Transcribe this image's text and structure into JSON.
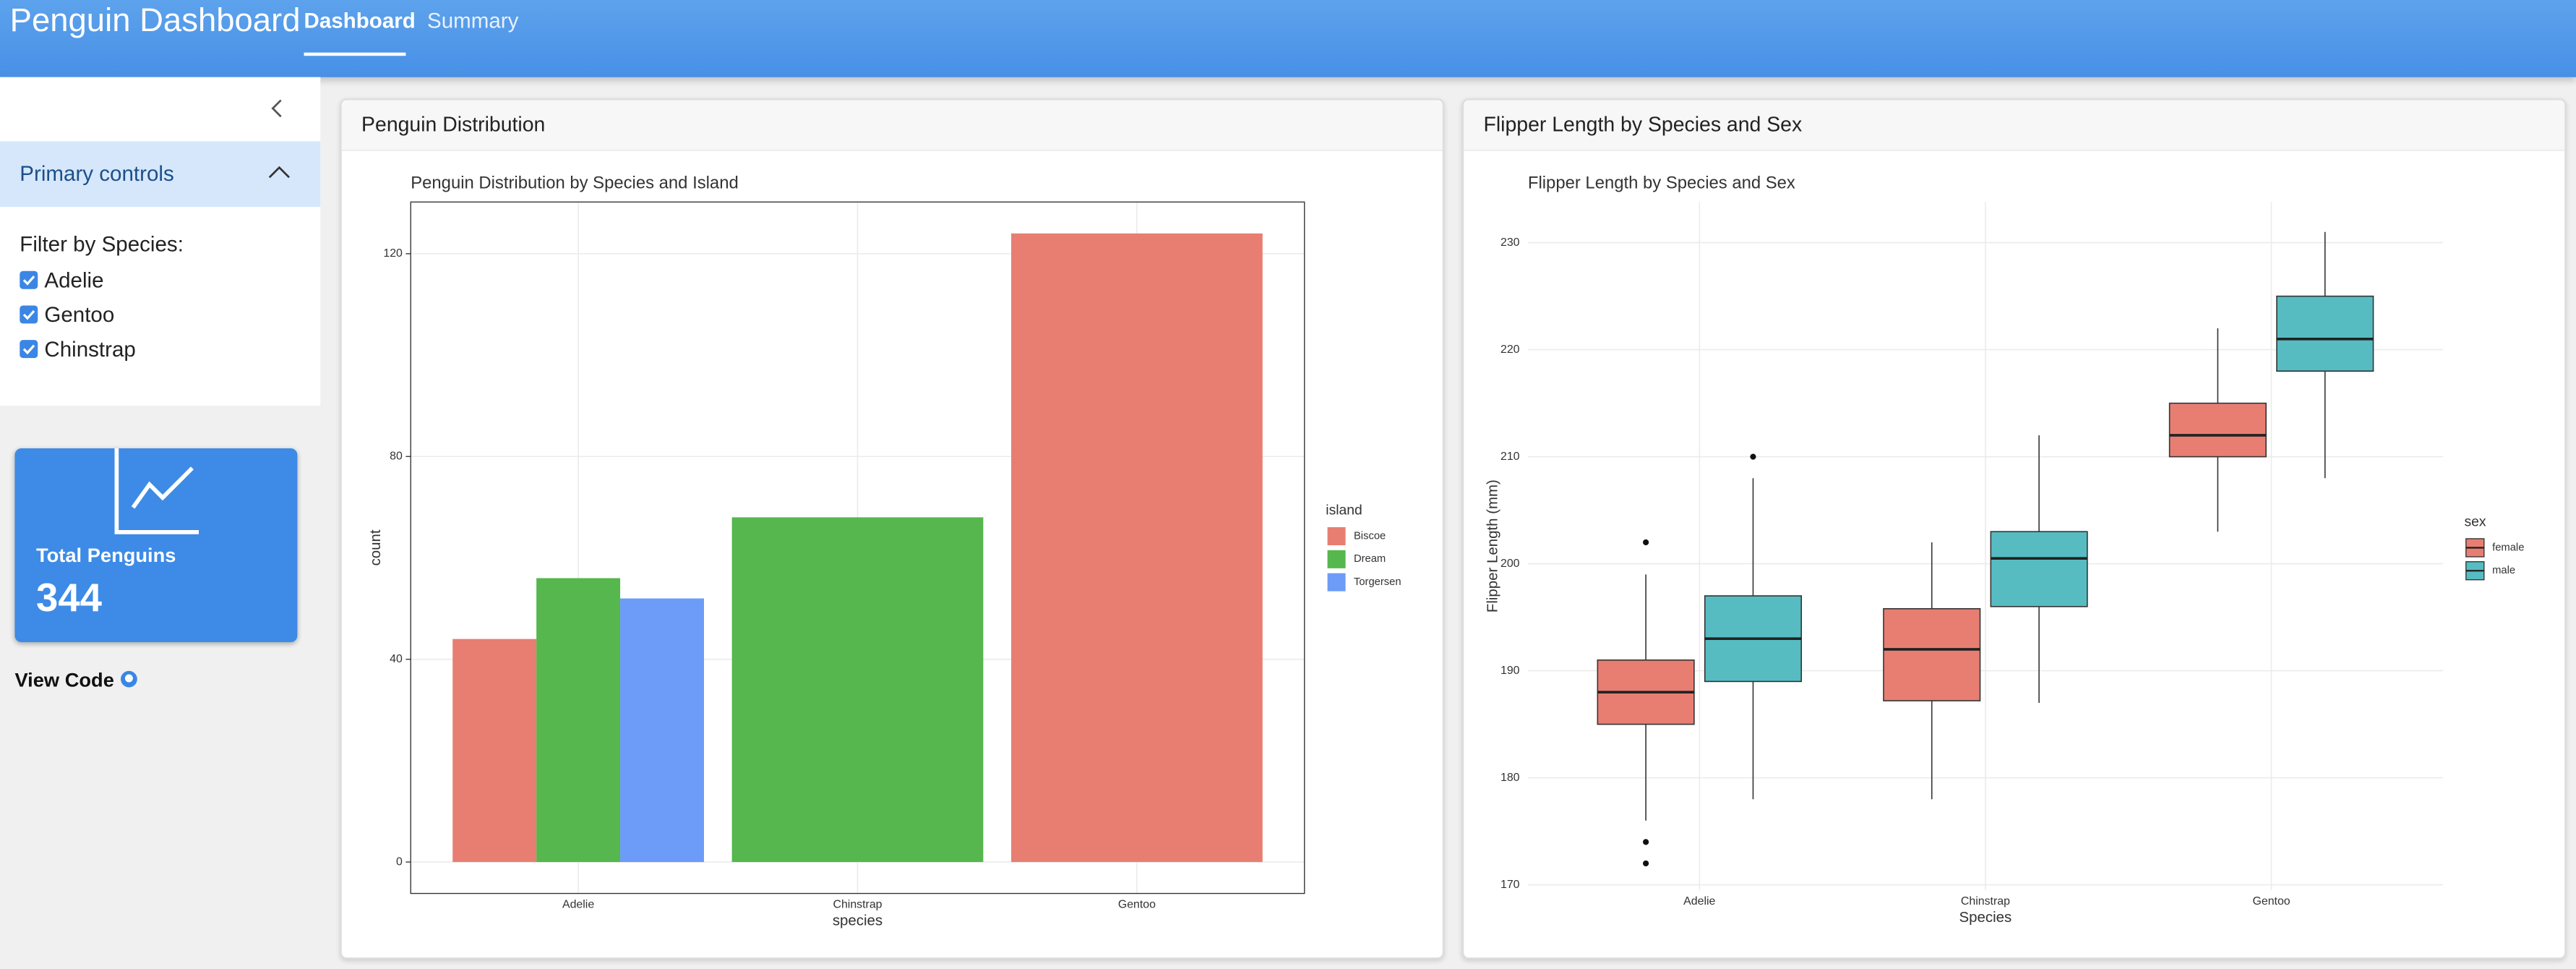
{
  "header": {
    "title": "Penguin Dashboard",
    "nav": [
      "Dashboard",
      "Summary"
    ]
  },
  "sidebar": {
    "section_title": "Primary controls",
    "filter_label": "Filter by Species:",
    "options": [
      "Adelie",
      "Gentoo",
      "Chinstrap"
    ]
  },
  "value_box": {
    "title": "Total Penguins",
    "value": 344
  },
  "link": "View Code",
  "cards": [
    "Penguin Distribution",
    "Flipper Length by Species and Sex"
  ],
  "chart_data": [
    {
      "type": "bar",
      "title": "Penguin Distribution by Species and Island",
      "x_label": "species",
      "y_label": "count",
      "legend_title": "island",
      "categories": [
        "Adelie",
        "Chinstrap",
        "Gentoo"
      ],
      "series": [
        {
          "name": "Biscoe",
          "color": "#e87e72",
          "values": [
            44,
            null,
            124
          ]
        },
        {
          "name": "Dream",
          "color": "#55b74d",
          "values": [
            56,
            68,
            null
          ]
        },
        {
          "name": "Torgersen",
          "color": "#6c9cf8",
          "values": [
            52,
            null,
            null
          ]
        }
      ],
      "ylim": [
        -6.2,
        130.2
      ],
      "yticks": [
        0,
        40,
        80,
        120
      ],
      "grid": true
    },
    {
      "type": "box",
      "title": "Flipper Length by Species and Sex",
      "x_label": "Species",
      "y_label": "Flipper Length (mm)",
      "legend_title": "sex",
      "categories": [
        "Adelie",
        "Chinstrap",
        "Gentoo"
      ],
      "series": [
        {
          "name": "female",
          "color": "#e87e72",
          "boxes": [
            {
              "min": 176,
              "q1": 185,
              "median": 188,
              "q3": 191,
              "max": 199,
              "outliers": [
                172,
                174,
                202
              ]
            },
            {
              "min": 178,
              "q1": 187.2,
              "median": 192,
              "q3": 195.8,
              "max": 202,
              "outliers": []
            },
            {
              "min": 203,
              "q1": 210,
              "median": 212,
              "q3": 215,
              "max": 222,
              "outliers": []
            }
          ]
        },
        {
          "name": "male",
          "color": "#56bcc2",
          "boxes": [
            {
              "min": 178,
              "q1": 189,
              "median": 193,
              "q3": 197,
              "max": 208,
              "outliers": [
                210
              ]
            },
            {
              "min": 187,
              "q1": 196,
              "median": 200.5,
              "q3": 203,
              "max": 212,
              "outliers": []
            },
            {
              "min": 208,
              "q1": 218,
              "median": 221,
              "q3": 225,
              "max": 231,
              "outliers": []
            }
          ]
        }
      ],
      "ylim": [
        169.5,
        233.8
      ],
      "yticks": [
        170,
        180,
        190,
        200,
        210,
        220,
        230
      ],
      "grid": true
    }
  ]
}
